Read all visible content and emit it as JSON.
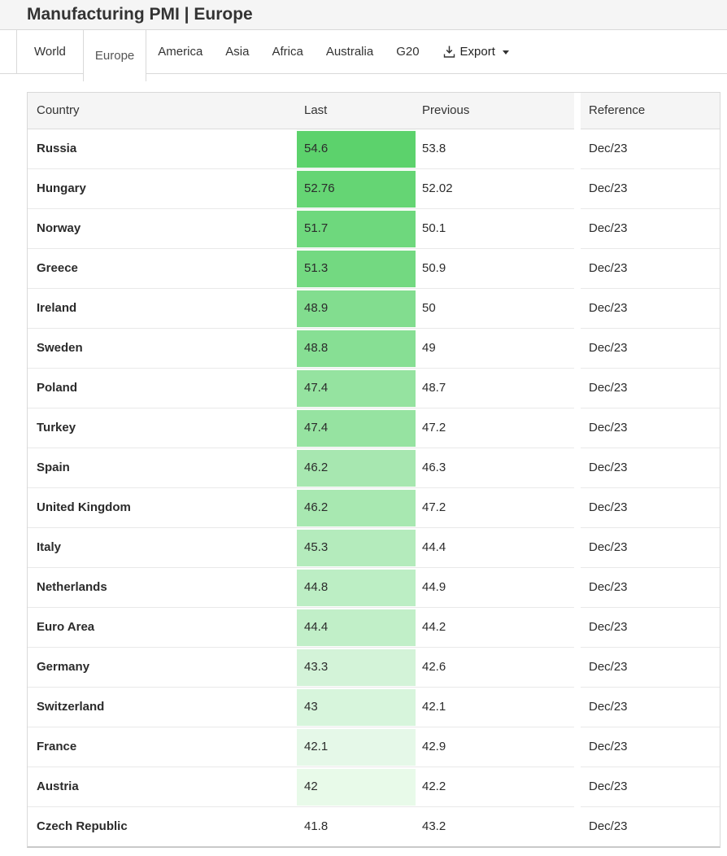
{
  "header": {
    "title": "Manufacturing PMI | Europe"
  },
  "tabs": [
    {
      "label": "World",
      "active": false,
      "boxed": true
    },
    {
      "label": "Europe",
      "active": true,
      "boxed": false
    },
    {
      "label": "America",
      "active": false,
      "boxed": false
    },
    {
      "label": "Asia",
      "active": false,
      "boxed": false
    },
    {
      "label": "Africa",
      "active": false,
      "boxed": false
    },
    {
      "label": "Australia",
      "active": false,
      "boxed": false
    },
    {
      "label": "G20",
      "active": false,
      "boxed": false
    }
  ],
  "export": {
    "label": "Export",
    "icon": "download-icon",
    "caret": "caret-down-icon"
  },
  "table": {
    "columns": {
      "country": "Country",
      "last": "Last",
      "previous": "Previous",
      "reference": "Reference"
    },
    "rows": [
      {
        "country": "Russia",
        "last": "54.6",
        "previous": "53.8",
        "reference": "Dec/23",
        "last_bg": "#5cd26c"
      },
      {
        "country": "Hungary",
        "last": "52.76",
        "previous": "52.02",
        "reference": "Dec/23",
        "last_bg": "#65d574"
      },
      {
        "country": "Norway",
        "last": "51.7",
        "previous": "50.1",
        "reference": "Dec/23",
        "last_bg": "#6ed87d"
      },
      {
        "country": "Greece",
        "last": "51.3",
        "previous": "50.9",
        "reference": "Dec/23",
        "last_bg": "#73d981"
      },
      {
        "country": "Ireland",
        "last": "48.9",
        "previous": "50",
        "reference": "Dec/23",
        "last_bg": "#82dd8f"
      },
      {
        "country": "Sweden",
        "last": "48.8",
        "previous": "49",
        "reference": "Dec/23",
        "last_bg": "#87df94"
      },
      {
        "country": "Poland",
        "last": "47.4",
        "previous": "48.7",
        "reference": "Dec/23",
        "last_bg": "#95e3a0"
      },
      {
        "country": "Turkey",
        "last": "47.4",
        "previous": "47.2",
        "reference": "Dec/23",
        "last_bg": "#96e3a1"
      },
      {
        "country": "Spain",
        "last": "46.2",
        "previous": "46.3",
        "reference": "Dec/23",
        "last_bg": "#a7e7b0"
      },
      {
        "country": "United Kingdom",
        "last": "46.2",
        "previous": "47.2",
        "reference": "Dec/23",
        "last_bg": "#a8e8b1"
      },
      {
        "country": "Italy",
        "last": "45.3",
        "previous": "44.4",
        "reference": "Dec/23",
        "last_bg": "#b4ebbc"
      },
      {
        "country": "Netherlands",
        "last": "44.8",
        "previous": "44.9",
        "reference": "Dec/23",
        "last_bg": "#bceec4"
      },
      {
        "country": "Euro Area",
        "last": "44.4",
        "previous": "44.2",
        "reference": "Dec/23",
        "last_bg": "#c1efc8"
      },
      {
        "country": "Germany",
        "last": "43.3",
        "previous": "42.6",
        "reference": "Dec/23",
        "last_bg": "#d3f3d8"
      },
      {
        "country": "Switzerland",
        "last": "43",
        "previous": "42.1",
        "reference": "Dec/23",
        "last_bg": "#d7f5dc"
      },
      {
        "country": "France",
        "last": "42.1",
        "previous": "42.9",
        "reference": "Dec/23",
        "last_bg": "#e5f8e8"
      },
      {
        "country": "Austria",
        "last": "42",
        "previous": "42.2",
        "reference": "Dec/23",
        "last_bg": "#e8fae9"
      },
      {
        "country": "Czech Republic",
        "last": "41.8",
        "previous": "43.2",
        "reference": "Dec/23",
        "last_bg": ""
      }
    ]
  },
  "colors": {
    "heat_green_max": "#5cd26c",
    "title_band_bg": "#f5f5f5",
    "table_header_bg": "#f5f5f5",
    "border": "#d9d9d9",
    "row_border": "#e9e9e9"
  }
}
